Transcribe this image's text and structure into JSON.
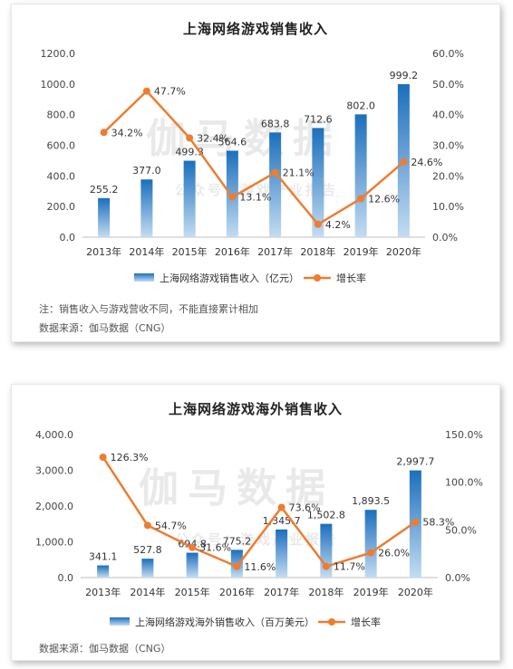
{
  "charts": [
    {
      "title": "上海网络游戏销售收入",
      "note": "注：销售收入与游戏营收不同，不能直接累计相加",
      "source": "数据来源：伽马数据（CNG）",
      "watermark_main": "伽马数据",
      "watermark_sub": "公众号：游戏产业报告"
    },
    {
      "title": "上海网络游戏海外销售收入",
      "source": "数据来源：伽马数据（CNG）",
      "watermark_main": "伽马数据",
      "watermark_sub": "公众号：游戏产业报告"
    }
  ],
  "chart_data": [
    {
      "type": "bar",
      "title": "上海网络游戏销售收入",
      "categories": [
        "2013年",
        "2014年",
        "2015年",
        "2016年",
        "2017年",
        "2018年",
        "2019年",
        "2020年"
      ],
      "series": [
        {
          "name": "上海网络游戏销售收入（亿元）",
          "type": "bar",
          "axis": "left",
          "values": [
            255.2,
            377.0,
            499.3,
            564.6,
            683.8,
            712.6,
            802.0,
            999.2
          ],
          "labels": [
            "255.2",
            "377.0",
            "499.3",
            "564.6",
            "683.8",
            "712.6",
            "802.0",
            "999.2"
          ]
        },
        {
          "name": "增长率",
          "type": "line",
          "axis": "right",
          "values": [
            34.2,
            47.7,
            32.4,
            13.1,
            21.1,
            4.2,
            12.6,
            24.6
          ],
          "labels": [
            "34.2%",
            "47.7%",
            "32.4%",
            "13.1%",
            "21.1%",
            "4.2%",
            "12.6%",
            "24.6%"
          ]
        }
      ],
      "y_left": {
        "min": 0,
        "max": 1200,
        "ticks": [
          "0.0",
          "200.0",
          "400.0",
          "600.0",
          "800.0",
          "1000.0",
          "1200.0"
        ]
      },
      "y_right": {
        "min": 0,
        "max": 60,
        "ticks": [
          "0.0%",
          "10.0%",
          "20.0%",
          "30.0%",
          "40.0%",
          "50.0%",
          "60.0%"
        ]
      },
      "legend_position": "bottom",
      "colors": {
        "bar_top": "#1b6fbd",
        "bar_bottom": "#c4dcf2",
        "line": "#ed7d31"
      }
    },
    {
      "type": "bar",
      "title": "上海网络游戏海外销售收入",
      "categories": [
        "2013年",
        "2014年",
        "2015年",
        "2016年",
        "2017年",
        "2018年",
        "2019年",
        "2020年"
      ],
      "series": [
        {
          "name": "上海网络游戏海外销售收入（百万美元）",
          "type": "bar",
          "axis": "left",
          "values": [
            341.1,
            527.8,
            694.8,
            775.2,
            1345.7,
            1502.8,
            1893.5,
            2997.7
          ],
          "labels": [
            "341.1",
            "527.8",
            "694.8",
            "775.2",
            "1,345.7",
            "1,502.8",
            "1,893.5",
            "2,997.7"
          ]
        },
        {
          "name": "增长率",
          "type": "line",
          "axis": "right",
          "values": [
            126.3,
            54.7,
            31.6,
            11.6,
            73.6,
            11.7,
            26.0,
            58.3
          ],
          "labels": [
            "126.3%",
            "54.7%",
            "31.6%",
            "11.6%",
            "73.6%",
            "11.7%",
            "26.0%",
            "58.3%"
          ]
        }
      ],
      "y_left": {
        "min": 0,
        "max": 4000,
        "ticks": [
          "0.0",
          "1,000.0",
          "2,000.0",
          "3,000.0",
          "4,000.0"
        ]
      },
      "y_right": {
        "min": 0,
        "max": 150,
        "ticks": [
          "0.0%",
          "50.0%",
          "100.0%",
          "150.0%"
        ]
      },
      "legend_position": "bottom",
      "colors": {
        "bar_top": "#1b6fbd",
        "bar_bottom": "#c4dcf2",
        "line": "#ed7d31"
      }
    }
  ]
}
